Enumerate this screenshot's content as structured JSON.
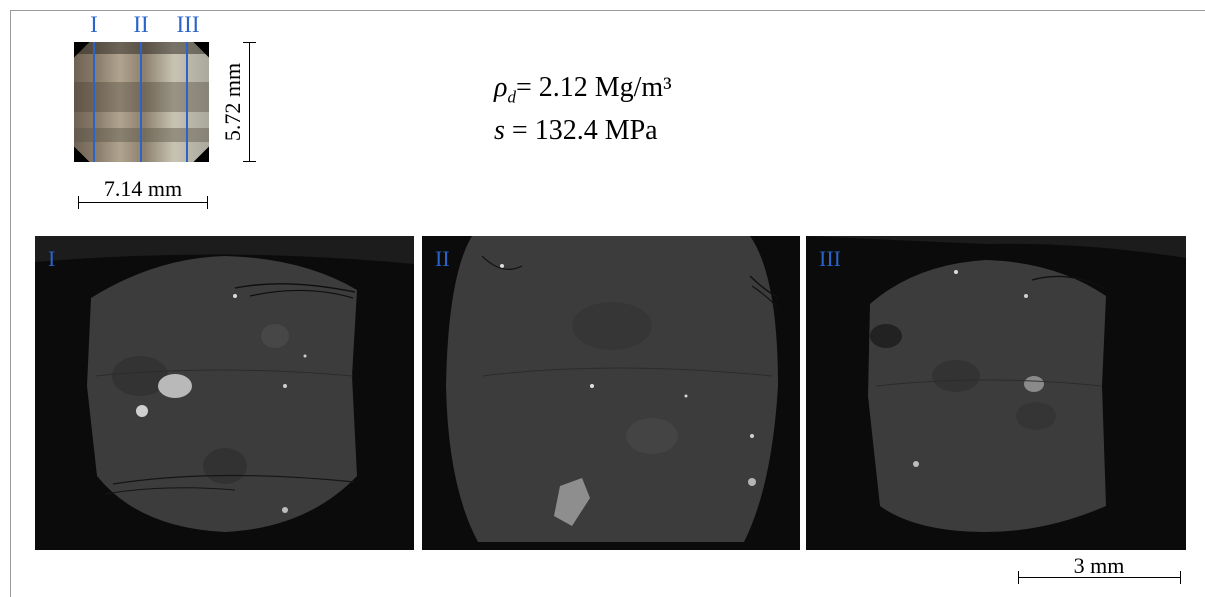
{
  "sample_photo": {
    "cut_labels": [
      "I",
      "II",
      "III"
    ],
    "width_label": "7.14 mm",
    "height_label": "5.72 mm"
  },
  "properties": {
    "density_symbol": "ρ",
    "density_subscript": "d",
    "density_text": "= 2.12 Mg/m³",
    "suction_symbol": "s",
    "suction_text": " = 132.4 MPa"
  },
  "slices": [
    {
      "label": "I"
    },
    {
      "label": "II"
    },
    {
      "label": "III"
    }
  ],
  "scale_bar": {
    "label": "3 mm"
  },
  "colors": {
    "label_blue": "#2a63c9",
    "matrix_grey": "#3d3d3d",
    "background": "#0b0b0b"
  }
}
